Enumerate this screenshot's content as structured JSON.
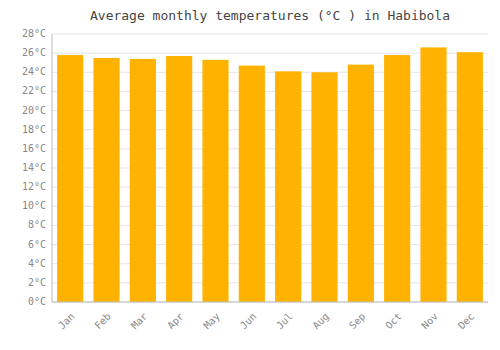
{
  "chart_data": {
    "type": "bar",
    "title": "Average monthly temperatures (°C ) in Habibola",
    "categories": [
      "Jan",
      "Feb",
      "Mar",
      "Apr",
      "May",
      "Jun",
      "Jul",
      "Aug",
      "Sep",
      "Oct",
      "Nov",
      "Dec"
    ],
    "values": [
      25.8,
      25.5,
      25.4,
      25.7,
      25.3,
      24.7,
      24.1,
      24.0,
      24.8,
      25.8,
      26.6,
      26.1
    ],
    "color": "#FFB300",
    "ylim": [
      0,
      28
    ],
    "yticks": [
      {
        "value": 0,
        "label": "0°C"
      },
      {
        "value": 2,
        "label": "2°C"
      },
      {
        "value": 4,
        "label": "4°C"
      },
      {
        "value": 6,
        "label": "6°C"
      },
      {
        "value": 8,
        "label": "8°C"
      },
      {
        "value": 10,
        "label": "10°C"
      },
      {
        "value": 12,
        "label": "12°C"
      },
      {
        "value": 14,
        "label": "14°C"
      },
      {
        "value": 16,
        "label": "16°C"
      },
      {
        "value": 18,
        "label": "18°C"
      },
      {
        "value": 20,
        "label": "20°C"
      },
      {
        "value": 22,
        "label": "22°C"
      },
      {
        "value": 24,
        "label": "24°C"
      },
      {
        "value": 26,
        "label": "26°C"
      },
      {
        "value": 28,
        "label": "28°C"
      }
    ],
    "grid": true
  }
}
